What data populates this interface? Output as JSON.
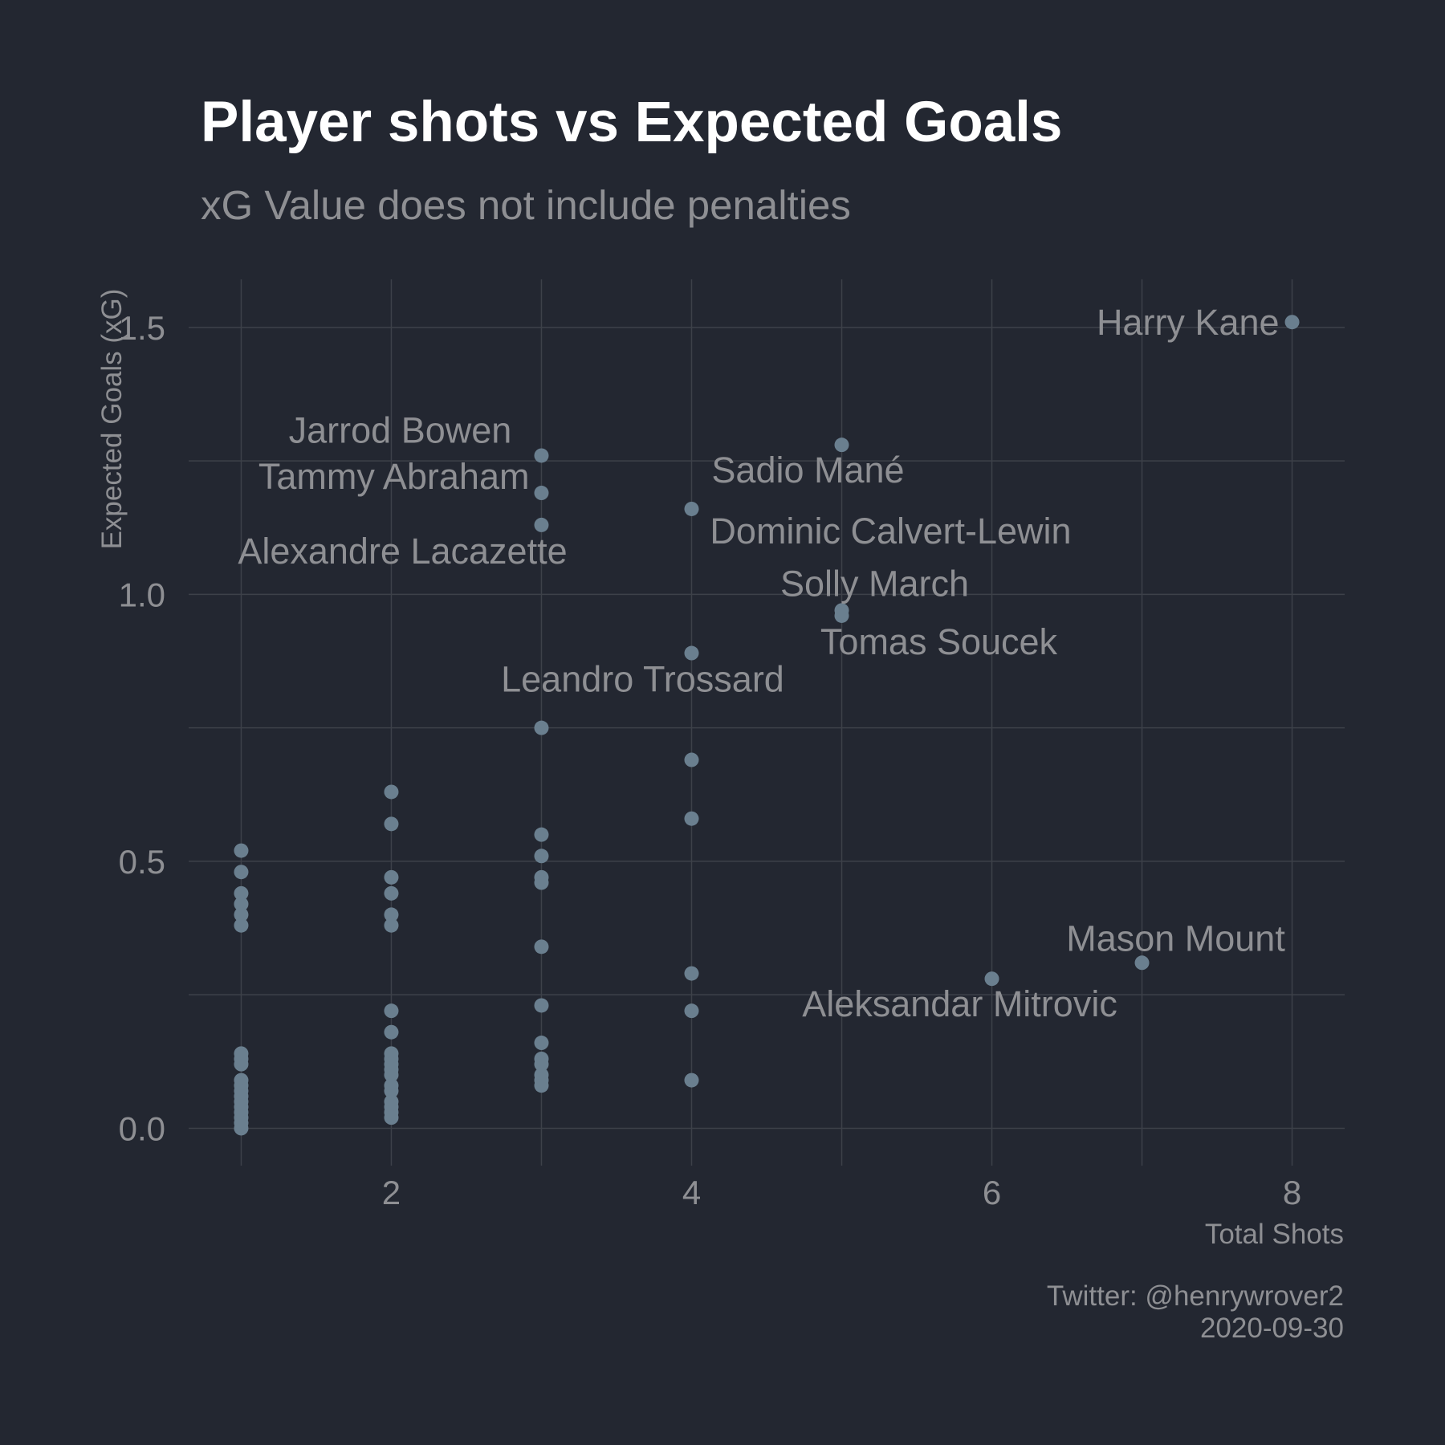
{
  "colors": {
    "background": "#232731",
    "grid": "#3d4149",
    "point": "#6a7f8f",
    "title": "#ffffff",
    "text": "#8e8f93"
  },
  "chart_data": {
    "type": "scatter",
    "title": "Player shots vs Expected Goals",
    "subtitle": "xG Value does not include penalties",
    "xlabel": "Total Shots",
    "ylabel": "Expected Goals (xG)",
    "xlim": [
      0.65,
      8.35
    ],
    "ylim": [
      -0.07,
      1.59
    ],
    "x_ticks": [
      2,
      4,
      6,
      8
    ],
    "x_tick_labels": [
      "2",
      "4",
      "6",
      "8"
    ],
    "x_minor_ticks": [
      1,
      3,
      5,
      7
    ],
    "y_ticks": [
      0,
      0.5,
      1,
      1.5
    ],
    "y_tick_labels": [
      "0.0",
      "0.5",
      "1.0",
      "1.5"
    ],
    "y_minor_ticks": [
      0.25,
      0.75,
      1.25
    ],
    "grid": true,
    "legend": "none",
    "caption": [
      "Twitter: @henrywrover2",
      "2020-09-30"
    ],
    "points": [
      {
        "x": 1,
        "y": 0.52
      },
      {
        "x": 1,
        "y": 0.48
      },
      {
        "x": 1,
        "y": 0.44
      },
      {
        "x": 1,
        "y": 0.42
      },
      {
        "x": 1,
        "y": 0.4
      },
      {
        "x": 1,
        "y": 0.38
      },
      {
        "x": 1,
        "y": 0.14
      },
      {
        "x": 1,
        "y": 0.13
      },
      {
        "x": 1,
        "y": 0.12
      },
      {
        "x": 1,
        "y": 0.09
      },
      {
        "x": 1,
        "y": 0.08
      },
      {
        "x": 1,
        "y": 0.07
      },
      {
        "x": 1,
        "y": 0.06
      },
      {
        "x": 1,
        "y": 0.05
      },
      {
        "x": 1,
        "y": 0.04
      },
      {
        "x": 1,
        "y": 0.03
      },
      {
        "x": 1,
        "y": 0.02
      },
      {
        "x": 1,
        "y": 0.01
      },
      {
        "x": 1,
        "y": 0.0
      },
      {
        "x": 2,
        "y": 0.63
      },
      {
        "x": 2,
        "y": 0.57
      },
      {
        "x": 2,
        "y": 0.47
      },
      {
        "x": 2,
        "y": 0.44
      },
      {
        "x": 2,
        "y": 0.4
      },
      {
        "x": 2,
        "y": 0.38
      },
      {
        "x": 2,
        "y": 0.22
      },
      {
        "x": 2,
        "y": 0.18
      },
      {
        "x": 2,
        "y": 0.14
      },
      {
        "x": 2,
        "y": 0.13
      },
      {
        "x": 2,
        "y": 0.12
      },
      {
        "x": 2,
        "y": 0.11
      },
      {
        "x": 2,
        "y": 0.1
      },
      {
        "x": 2,
        "y": 0.08
      },
      {
        "x": 2,
        "y": 0.07
      },
      {
        "x": 2,
        "y": 0.05
      },
      {
        "x": 2,
        "y": 0.04
      },
      {
        "x": 2,
        "y": 0.03
      },
      {
        "x": 2,
        "y": 0.02
      },
      {
        "x": 3,
        "y": 1.26,
        "label": "Jarrod Bowen"
      },
      {
        "x": 3,
        "y": 1.19,
        "label": "Tammy Abraham"
      },
      {
        "x": 3,
        "y": 1.13,
        "label": "Alexandre Lacazette"
      },
      {
        "x": 3,
        "y": 0.75
      },
      {
        "x": 3,
        "y": 0.55
      },
      {
        "x": 3,
        "y": 0.51
      },
      {
        "x": 3,
        "y": 0.47
      },
      {
        "x": 3,
        "y": 0.46
      },
      {
        "x": 3,
        "y": 0.34
      },
      {
        "x": 3,
        "y": 0.23
      },
      {
        "x": 3,
        "y": 0.16
      },
      {
        "x": 3,
        "y": 0.13
      },
      {
        "x": 3,
        "y": 0.12
      },
      {
        "x": 3,
        "y": 0.1
      },
      {
        "x": 3,
        "y": 0.09
      },
      {
        "x": 3,
        "y": 0.08
      },
      {
        "x": 4,
        "y": 1.16,
        "label": "Dominic Calvert-Lewin"
      },
      {
        "x": 4,
        "y": 0.89,
        "label": "Leandro Trossard"
      },
      {
        "x": 4,
        "y": 0.69
      },
      {
        "x": 4,
        "y": 0.58
      },
      {
        "x": 4,
        "y": 0.29
      },
      {
        "x": 4,
        "y": 0.22
      },
      {
        "x": 4,
        "y": 0.09
      },
      {
        "x": 5,
        "y": 1.28,
        "label": "Sadio Mané"
      },
      {
        "x": 5,
        "y": 0.97,
        "label": "Solly March"
      },
      {
        "x": 5,
        "y": 0.96,
        "label": "Tomas Soucek"
      },
      {
        "x": 6,
        "y": 0.28,
        "label": "Aleksandar Mitrovic"
      },
      {
        "x": 7,
        "y": 0.31,
        "label": "Mason Mount"
      },
      {
        "x": 8,
        "y": 1.51,
        "label": "Harry Kane"
      }
    ]
  }
}
